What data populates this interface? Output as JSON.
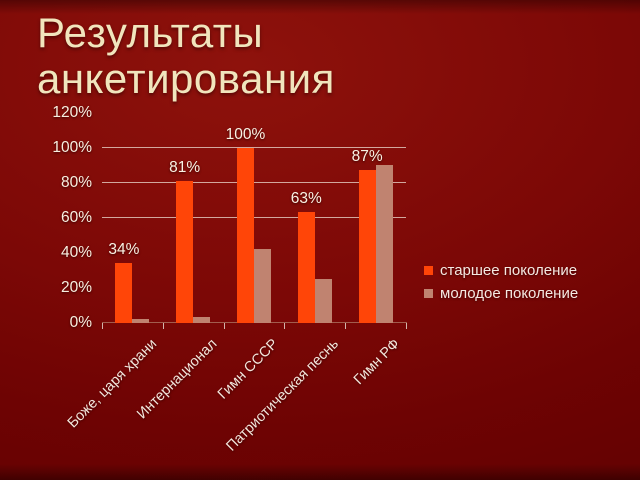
{
  "slide": {
    "title": "Результаты анкетирования",
    "background_color": "#760303",
    "title_color": "#f1e5bd"
  },
  "chart_data": {
    "type": "bar",
    "categories": [
      "Боже, царя храни",
      "Интернационал",
      "Гимн СССР",
      "Патриотическая песнь",
      "Гимн РФ"
    ],
    "series": [
      {
        "name": "старшее поколение",
        "color": "#ff4508",
        "values": [
          34,
          81,
          100,
          63,
          87
        ],
        "data_labels": [
          "34%",
          "81%",
          "100%",
          "63%",
          "87%"
        ]
      },
      {
        "name": "молодое поколение",
        "color": "#c08370",
        "values": [
          2,
          3,
          42,
          25,
          90
        ]
      }
    ],
    "y_axis": {
      "min": 0,
      "max": 120,
      "ticks": [
        {
          "label": "0%",
          "value": 0
        },
        {
          "label": "20%",
          "value": 20
        },
        {
          "label": "40%",
          "value": 40
        },
        {
          "label": "60%",
          "value": 60
        },
        {
          "label": "80%",
          "value": 80
        },
        {
          "label": "100%",
          "value": 100
        },
        {
          "label": "120%",
          "value": 120
        }
      ]
    },
    "gridlines_at": [
      60,
      80,
      100
    ],
    "legend_position": "right",
    "data_labels_on_series": "старшее поколение"
  }
}
